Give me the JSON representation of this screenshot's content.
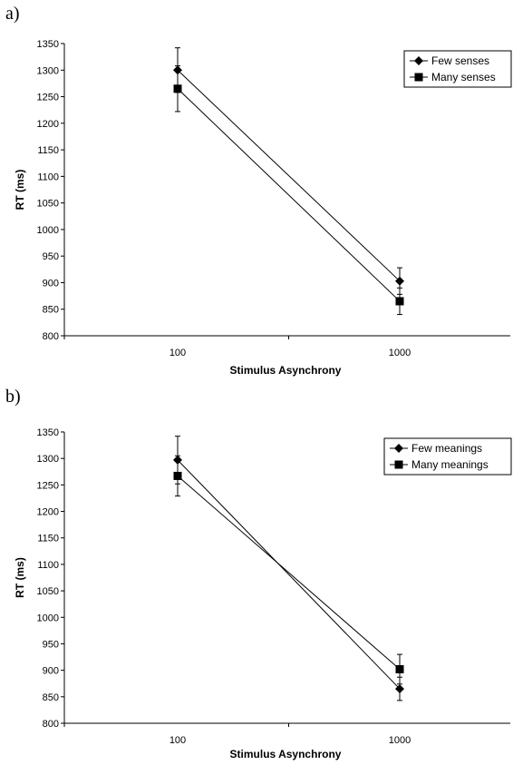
{
  "chart_data": [
    {
      "panel_label": "a)",
      "type": "line",
      "x": [
        100,
        1000
      ],
      "xlabel": "Stimulus Asynchrony",
      "ylabel": "RT (ms)",
      "ylim": [
        800,
        1350
      ],
      "yticks": [
        800,
        850,
        900,
        950,
        1000,
        1050,
        1100,
        1150,
        1200,
        1250,
        1300,
        1350
      ],
      "grid": false,
      "legend_position": "top-right",
      "series": [
        {
          "name": "Few senses",
          "marker": "diamond",
          "values": [
            1300,
            903
          ],
          "error": [
            42,
            25
          ]
        },
        {
          "name": "Many senses",
          "marker": "square",
          "values": [
            1265,
            865
          ],
          "error": [
            43,
            25
          ]
        }
      ]
    },
    {
      "panel_label": "b)",
      "type": "line",
      "x": [
        100,
        1000
      ],
      "xlabel": "Stimulus Asynchrony",
      "ylabel": "RT (ms)",
      "ylim": [
        800,
        1350
      ],
      "yticks": [
        800,
        850,
        900,
        950,
        1000,
        1050,
        1100,
        1150,
        1200,
        1250,
        1300,
        1350
      ],
      "grid": false,
      "legend_position": "top-right",
      "series": [
        {
          "name": "Few meanings",
          "marker": "diamond",
          "values": [
            1297,
            865
          ],
          "error": [
            45,
            22
          ]
        },
        {
          "name": "Many meanings",
          "marker": "square",
          "values": [
            1267,
            902
          ],
          "error": [
            38,
            28
          ]
        }
      ]
    }
  ]
}
